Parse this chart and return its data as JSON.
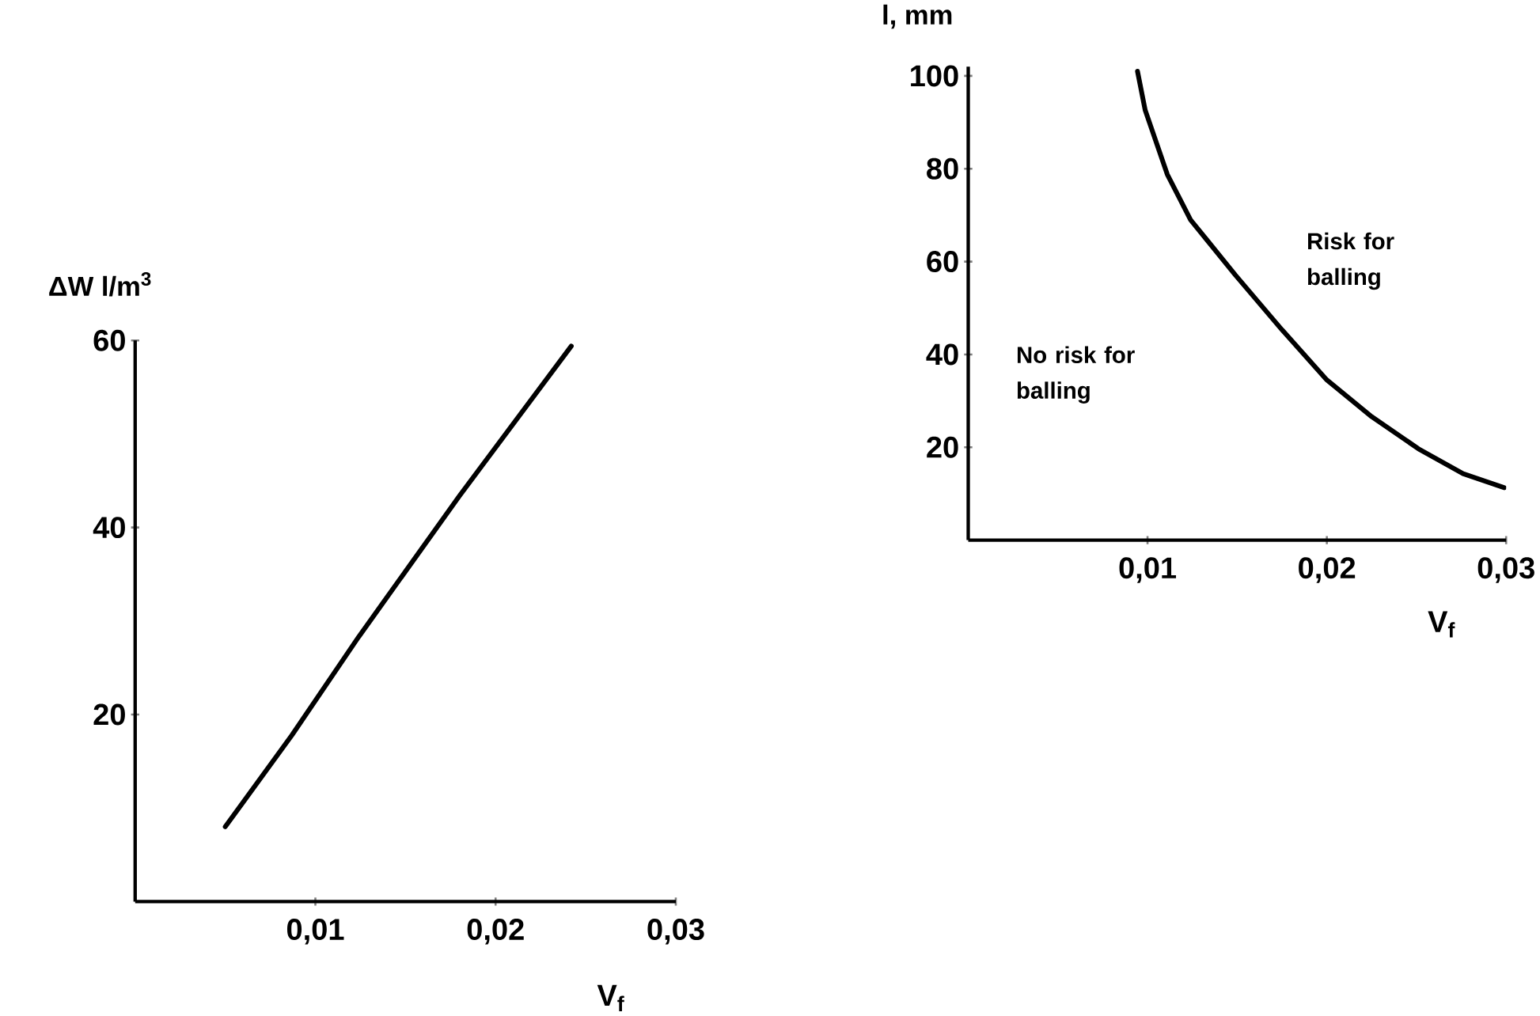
{
  "chart_data": [
    {
      "type": "line",
      "ylabel": "ΔW  l/m$^{3}$",
      "xlabel": "V$_{f}$",
      "xlim": [
        0,
        0.03
      ],
      "ylim": [
        0,
        60
      ],
      "xticks": [
        {
          "value": 0.01,
          "label": "0,01"
        },
        {
          "value": 0.02,
          "label": "0,02"
        },
        {
          "value": 0.03,
          "label": "0,03"
        }
      ],
      "yticks": [
        20,
        40,
        60
      ],
      "series": [
        {
          "color": "#000000",
          "x": [
            0.005,
            0.0087,
            0.0124,
            0.018,
            0.0242
          ],
          "values": [
            8,
            17.8,
            28.3,
            43.4,
            59.4
          ]
        }
      ]
    },
    {
      "type": "line",
      "ylabel": "l, mm",
      "xlabel": "V$_{f}$",
      "xlim": [
        0,
        0.03
      ],
      "ylim": [
        0,
        102
      ],
      "xticks": [
        {
          "value": 0.01,
          "label": "0,01"
        },
        {
          "value": 0.02,
          "label": "0,02"
        },
        {
          "value": 0.03,
          "label": "0,03"
        }
      ],
      "yticks": [
        20,
        40,
        60,
        80,
        100
      ],
      "annotations": [
        "No risk for balling",
        "Risk for balling"
      ],
      "series": [
        {
          "color": "#000000",
          "x": [
            0.00944,
            0.00987,
            0.0111,
            0.0124,
            0.0149,
            0.0175,
            0.02,
            0.0225,
            0.0251,
            0.0276,
            0.0299
          ],
          "values": [
            101,
            92.6,
            78.8,
            69,
            57.1,
            45.3,
            34.5,
            26.6,
            19.7,
            14.3,
            11.3
          ]
        }
      ]
    }
  ]
}
